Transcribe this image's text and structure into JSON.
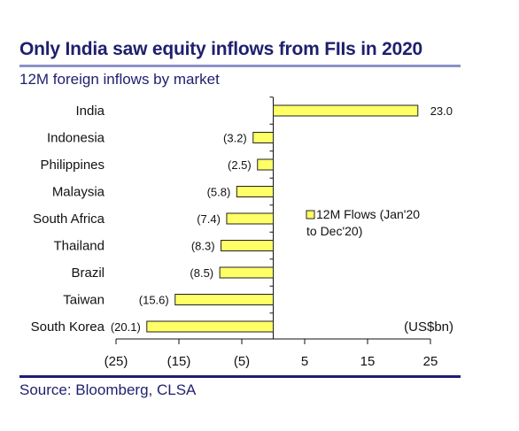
{
  "header": {
    "title": "Only India saw equity inflows from FIIs in 2020",
    "subtitle": "12M foreign inflows by market"
  },
  "footer": {
    "source": "Source: Bloomberg, CLSA"
  },
  "colors": {
    "title": "#1f1f6e",
    "bar_fill": "#ffff66",
    "bar_stroke": "#222222",
    "axis": "#111111"
  },
  "chart_data": {
    "type": "bar",
    "orientation": "horizontal",
    "categories": [
      "India",
      "Indonesia",
      "Philippines",
      "Malaysia",
      "South Africa",
      "Thailand",
      "Brazil",
      "Taiwan",
      "South Korea"
    ],
    "series": [
      {
        "name": "12M Flows (Jan'20 to Dec'20)",
        "legend_lines": [
          "12M Flows (Jan'20",
          "to Dec'20)"
        ],
        "values": [
          23.0,
          -3.2,
          -2.5,
          -5.8,
          -7.4,
          -8.3,
          -8.5,
          -15.6,
          -20.1
        ],
        "labels": [
          "23.0",
          "(3.2)",
          "(2.5)",
          "(5.8)",
          "(7.4)",
          "(8.3)",
          "(8.5)",
          "(15.6)",
          "(20.1)"
        ]
      }
    ],
    "unit_label": "(US$bn)",
    "xlim": [
      -25,
      25
    ],
    "xticks": [
      -25,
      -15,
      -5,
      5,
      15,
      25
    ],
    "xtick_labels": [
      "(25)",
      "(15)",
      "(5)",
      "5",
      "15",
      "25"
    ],
    "grid": false,
    "legend_position": "right-middle"
  }
}
